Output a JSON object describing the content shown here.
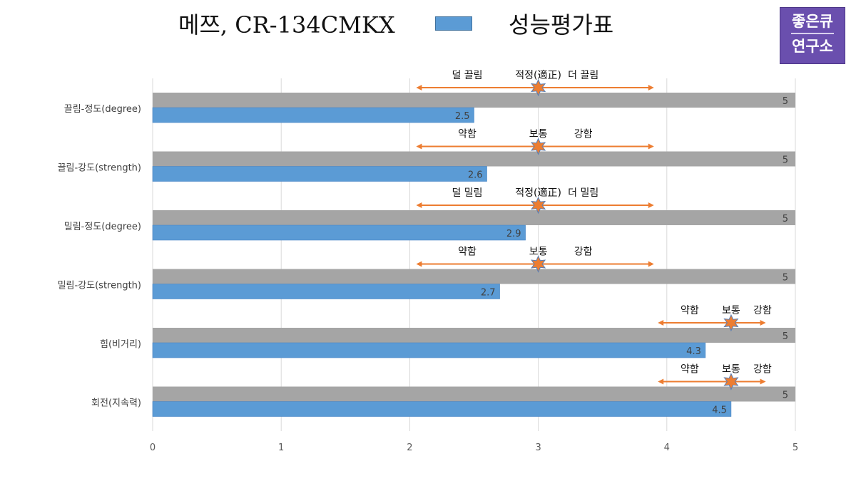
{
  "title": "메쯔, CR-134CMKX",
  "legend_label": "성능평가표",
  "logo": {
    "line1": "좋은큐",
    "line2": "연구소"
  },
  "colors": {
    "gray_bar": "#a5a5a5",
    "blue_bar": "#5b9bd5",
    "arrow": "#ed7d31",
    "star": "#ed7d31",
    "star_outline": "#5b7fb4"
  },
  "chart_data": {
    "type": "bar",
    "orientation": "horizontal",
    "categories": [
      "끌림-정도(degree)",
      "끌림-강도(strength)",
      "밀림-정도(degree)",
      "밀림-강도(strength)",
      "힘(비거리)",
      "회전(지속력)"
    ],
    "series": [
      {
        "values": [
          5,
          5,
          5,
          5,
          5,
          5
        ],
        "color": "#a5a5a5"
      },
      {
        "name": "성능평가표",
        "values": [
          2.5,
          2.6,
          2.9,
          2.7,
          4.3,
          4.5
        ],
        "color": "#5b9bd5"
      }
    ],
    "xlim": [
      0,
      5
    ],
    "xticks": [
      "0",
      "1",
      "2",
      "3",
      "4",
      "5"
    ],
    "grid": "vertical",
    "annotations": [
      {
        "left": "덜 끌림",
        "center": "적정(適正)",
        "right": "더 끌림",
        "marker": 3,
        "arrow_from": 2.05,
        "arrow_to": 3.9
      },
      {
        "left": "약함",
        "center": "보통",
        "right": "강함",
        "marker": 3,
        "arrow_from": 2.05,
        "arrow_to": 3.9
      },
      {
        "left": "덜 밀림",
        "center": "적정(適正)",
        "right": "더 밀림",
        "marker": 3,
        "arrow_from": 2.05,
        "arrow_to": 3.9
      },
      {
        "left": "약함",
        "center": "보통",
        "right": "강함",
        "marker": 3,
        "arrow_from": 2.05,
        "arrow_to": 3.9
      },
      {
        "left": "약함",
        "center": "보통",
        "right": "강함",
        "marker": 4.5,
        "arrow_from": 3.93,
        "arrow_to": 4.77
      },
      {
        "left": "약함",
        "center": "보통",
        "right": "강함",
        "marker": 4.5,
        "arrow_from": 3.93,
        "arrow_to": 4.77
      }
    ]
  }
}
